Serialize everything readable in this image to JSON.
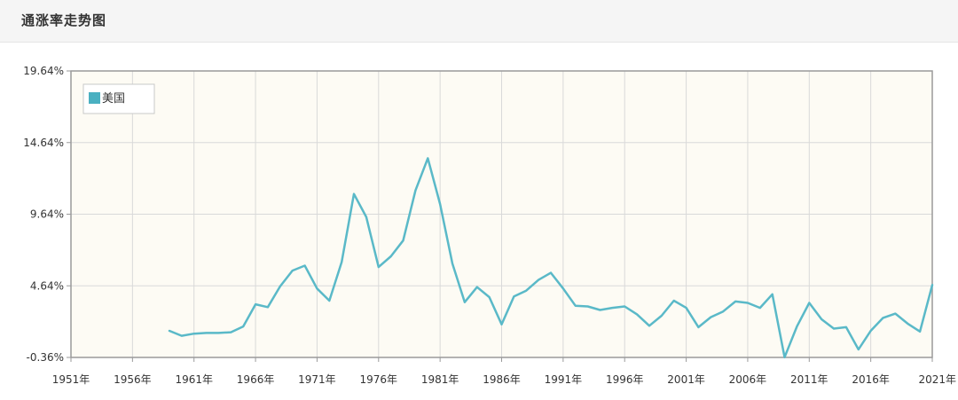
{
  "panel": {
    "title": "通涨率走势图"
  },
  "colors": {
    "line": "#5ab9c8",
    "legend_swatch": "#4ab0c1",
    "plot_bg": "#fdfbf4",
    "grid": "#d9d9d9",
    "frame": "#9a9a9a"
  },
  "chart_data": {
    "type": "line",
    "title": "",
    "xlabel": "",
    "ylabel": "",
    "xlim": [
      1951,
      2021
    ],
    "ylim": [
      -0.36,
      19.64
    ],
    "x_ticks": [
      1951,
      1956,
      1961,
      1966,
      1971,
      1976,
      1981,
      1986,
      1991,
      1996,
      2001,
      2006,
      2011,
      2016,
      2021
    ],
    "x_tick_labels": [
      "1951年",
      "1956年",
      "1961年",
      "1966年",
      "1971年",
      "1976年",
      "1981年",
      "1986年",
      "1991年",
      "1996年",
      "2001年",
      "2006年",
      "2011年",
      "2016年",
      "2021年"
    ],
    "y_ticks": [
      -0.36,
      4.64,
      9.64,
      14.64,
      19.64
    ],
    "y_tick_labels": [
      "-0.36%",
      "4.64%",
      "9.64%",
      "14.64%",
      "19.64%"
    ],
    "grid": true,
    "legend": {
      "position": "top-left",
      "entries": [
        "美国"
      ]
    },
    "series": [
      {
        "name": "美国",
        "x": [
          1959,
          1960,
          1961,
          1962,
          1963,
          1964,
          1965,
          1966,
          1967,
          1968,
          1969,
          1970,
          1971,
          1972,
          1973,
          1974,
          1975,
          1976,
          1977,
          1978,
          1979,
          1980,
          1981,
          1982,
          1983,
          1984,
          1985,
          1986,
          1987,
          1988,
          1989,
          1990,
          1991,
          1992,
          1993,
          1994,
          1995,
          1996,
          1997,
          1998,
          1999,
          2000,
          2001,
          2002,
          2003,
          2004,
          2005,
          2006,
          2007,
          2008,
          2009,
          2010,
          2011,
          2012,
          2013,
          2014,
          2015,
          2016,
          2017,
          2018,
          2019,
          2020,
          2021
        ],
        "values": [
          1.5,
          1.15,
          1.3,
          1.35,
          1.35,
          1.4,
          1.8,
          3.35,
          3.15,
          4.6,
          5.7,
          6.05,
          4.45,
          3.6,
          6.3,
          11.05,
          9.45,
          5.95,
          6.7,
          7.8,
          11.3,
          13.55,
          10.35,
          6.2,
          3.5,
          4.55,
          3.85,
          1.95,
          3.9,
          4.3,
          5.05,
          5.55,
          4.45,
          3.25,
          3.2,
          2.95,
          3.1,
          3.2,
          2.65,
          1.85,
          2.55,
          3.6,
          3.1,
          1.75,
          2.45,
          2.85,
          3.55,
          3.45,
          3.1,
          4.05,
          -0.35,
          1.8,
          3.45,
          2.3,
          1.65,
          1.75,
          0.2,
          1.5,
          2.4,
          2.7,
          2.0,
          1.45,
          4.7
        ]
      }
    ]
  }
}
